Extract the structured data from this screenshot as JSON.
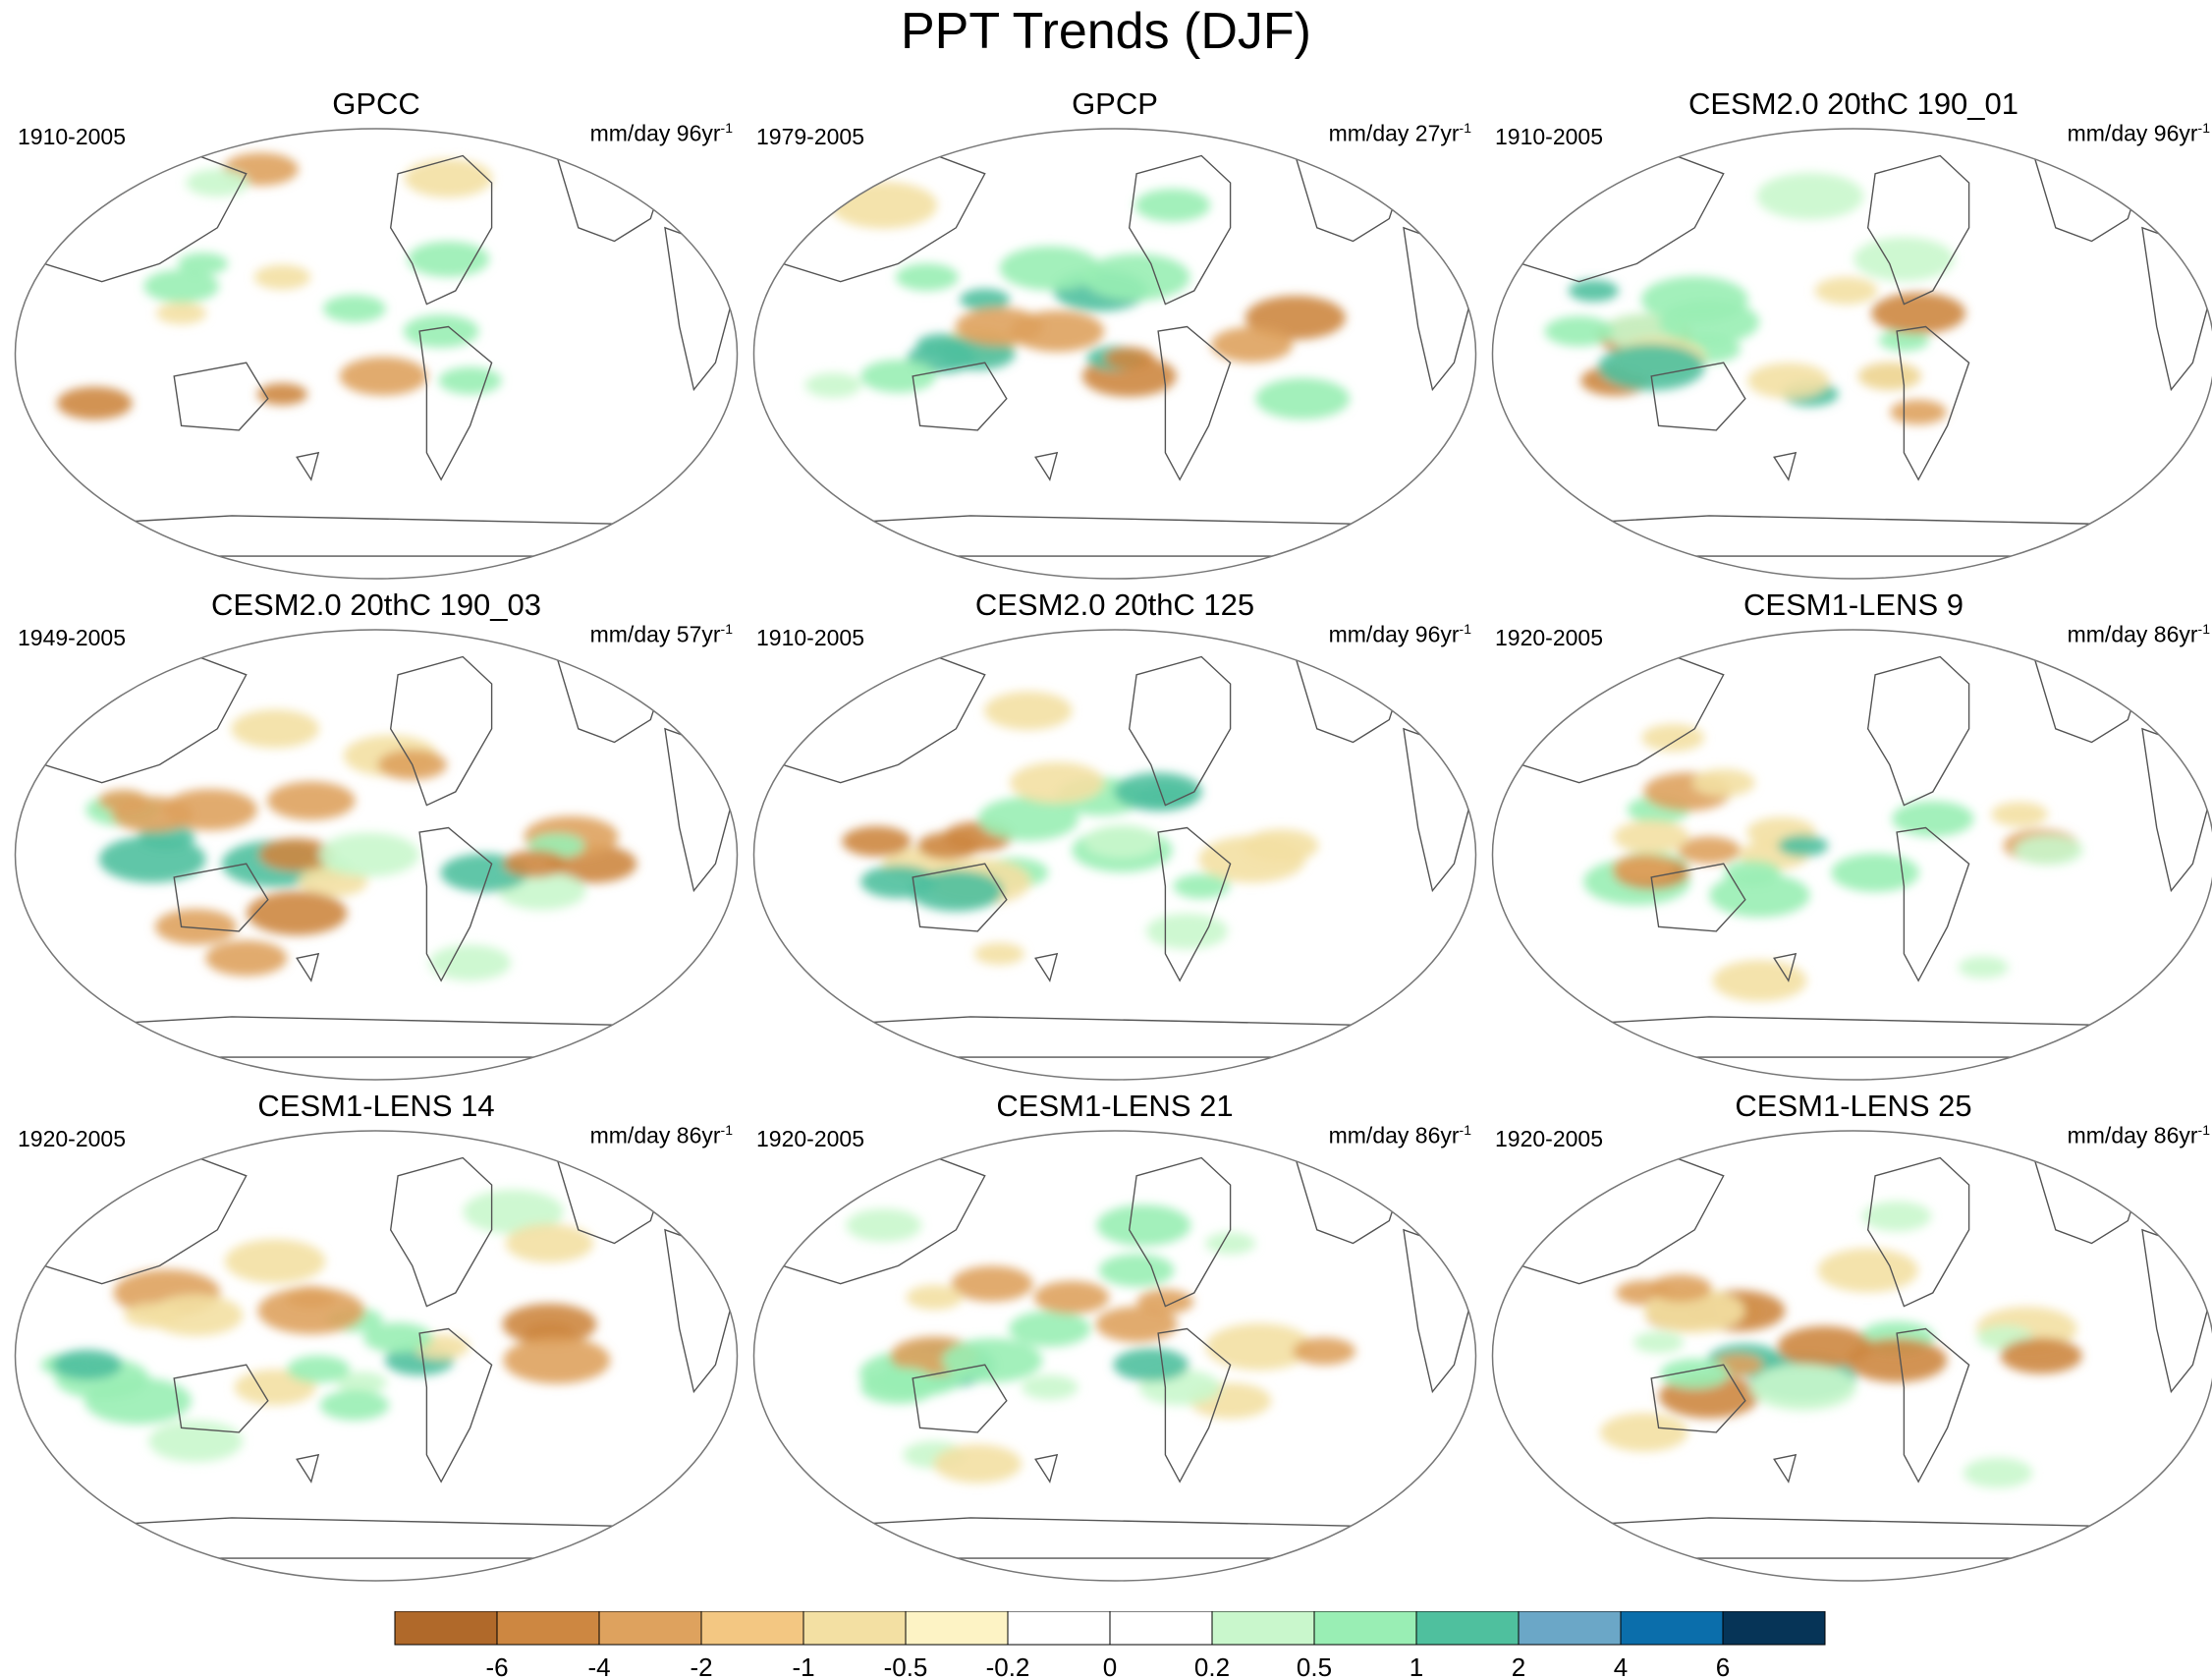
{
  "title": "PPT Trends (DJF)",
  "units_label": "mm/day",
  "colors": {
    "coast": "#555555",
    "outline": "#777777",
    "land_fill": "#ffffff"
  },
  "panels": [
    {
      "title": "GPCC",
      "period": "1910-2005",
      "trend_span": "96yr",
      "unit_exp": "-1",
      "pattern": [
        [
          0.08,
          0.07,
          12,
          2
        ],
        [
          0.12,
          0.11,
          8,
          -1
        ],
        [
          0.07,
          0.04,
          13,
          -1
        ],
        [
          0.07,
          0.03,
          14,
          2
        ],
        [
          0.34,
          0.09,
          12,
          -2
        ],
        [
          0.28,
          0.12,
          10,
          1
        ],
        [
          0.23,
          0.41,
          8,
          -1
        ],
        [
          0.26,
          0.3,
          8,
          2
        ],
        [
          0.37,
          0.33,
          9,
          -1
        ],
        [
          0.63,
          0.56,
          10,
          2
        ],
        [
          0.51,
          0.55,
          14,
          -2
        ],
        [
          0.59,
          0.45,
          12,
          2
        ],
        [
          0.37,
          0.59,
          8,
          -3
        ],
        [
          0.47,
          0.4,
          10,
          2
        ],
        [
          0.6,
          0.11,
          14,
          -1
        ],
        [
          0.6,
          0.29,
          13,
          2
        ],
        [
          0.11,
          0.61,
          12,
          -3
        ],
        [
          0.23,
          0.35,
          12,
          2
        ]
      ],
      "mask": "land"
    },
    {
      "title": "GPCP",
      "period": "1979-2005",
      "trend_span": "27yr",
      "unit_exp": "-1",
      "pattern": [
        [
          0.31,
          0.48,
          12,
          -1
        ],
        [
          0.42,
          0.45,
          15,
          -2
        ],
        [
          0.75,
          0.42,
          16,
          -3
        ],
        [
          0.26,
          0.51,
          11,
          3
        ],
        [
          0.31,
          0.5,
          12,
          3
        ],
        [
          0.76,
          0.6,
          15,
          2
        ],
        [
          0.69,
          0.48,
          13,
          -2
        ],
        [
          0.48,
          0.36,
          15,
          3
        ],
        [
          0.2,
          0.55,
          12,
          2
        ],
        [
          0.26,
          0.48,
          8,
          3
        ],
        [
          0.52,
          0.55,
          15,
          -3
        ],
        [
          0.53,
          0.33,
          17,
          2
        ],
        [
          0.5,
          0.51,
          9,
          3
        ],
        [
          0.32,
          0.38,
          8,
          3
        ],
        [
          0.24,
          0.33,
          10,
          2
        ],
        [
          0.52,
          0.51,
          8,
          -3
        ],
        [
          0.34,
          0.44,
          14,
          -2
        ],
        [
          0.11,
          0.57,
          9,
          1
        ],
        [
          0.58,
          0.17,
          12,
          2
        ],
        [
          0.41,
          0.31,
          16,
          2
        ],
        [
          0.18,
          0.17,
          17,
          -1
        ]
      ],
      "mask": "ocean"
    },
    {
      "title": "CESM2.0 20thC 190_01",
      "period": "1910-2005",
      "trend_span": "96yr",
      "unit_exp": "-1",
      "pattern": [
        [
          0.21,
          0.46,
          15,
          -3
        ],
        [
          0.28,
          0.38,
          17,
          2
        ],
        [
          0.57,
          0.47,
          8,
          2
        ],
        [
          0.3,
          0.49,
          10,
          2
        ],
        [
          0.55,
          0.55,
          10,
          -3
        ],
        [
          0.55,
          0.55,
          10,
          -1
        ],
        [
          0.44,
          0.59,
          9,
          3
        ],
        [
          0.59,
          0.41,
          15,
          -3
        ],
        [
          0.17,
          0.56,
          11,
          -3
        ],
        [
          0.59,
          0.63,
          9,
          -2
        ],
        [
          0.49,
          0.36,
          10,
          -1
        ],
        [
          0.21,
          0.45,
          13,
          1
        ],
        [
          0.23,
          0.51,
          15,
          -1
        ],
        [
          0.22,
          0.53,
          17,
          3
        ],
        [
          0.12,
          0.45,
          11,
          2
        ],
        [
          0.14,
          0.36,
          8,
          3
        ],
        [
          0.41,
          0.56,
          13,
          -1
        ],
        [
          0.3,
          0.43,
          16,
          2
        ],
        [
          0.57,
          0.29,
          16,
          1
        ],
        [
          0.44,
          0.15,
          17,
          1
        ]
      ],
      "mask": "ocean"
    },
    {
      "title": "CESM2.0 20thC 190_03",
      "period": "1949-2005",
      "trend_span": "57yr",
      "unit_exp": "-1",
      "pattern": [
        [
          0.27,
          0.4,
          15,
          -2
        ],
        [
          0.36,
          0.52,
          17,
          3
        ],
        [
          0.43,
          0.53,
          8,
          2
        ],
        [
          0.8,
          0.52,
          14,
          -3
        ],
        [
          0.77,
          0.46,
          15,
          -2
        ],
        [
          0.73,
          0.58,
          14,
          1
        ],
        [
          0.65,
          0.54,
          14,
          3
        ],
        [
          0.15,
          0.4,
          12,
          2
        ],
        [
          0.19,
          0.51,
          17,
          3
        ],
        [
          0.39,
          0.5,
          12,
          -3
        ],
        [
          0.44,
          0.56,
          11,
          -1
        ],
        [
          0.21,
          0.46,
          9,
          3
        ],
        [
          0.75,
          0.48,
          9,
          2
        ],
        [
          0.72,
          0.52,
          10,
          -3
        ],
        [
          0.19,
          0.41,
          13,
          -2
        ],
        [
          0.41,
          0.38,
          14,
          -2
        ],
        [
          0.52,
          0.28,
          15,
          -1
        ],
        [
          0.49,
          0.5,
          16,
          1
        ],
        [
          0.55,
          0.3,
          11,
          -2
        ],
        [
          0.63,
          0.74,
          13,
          1
        ],
        [
          0.25,
          0.66,
          13,
          -2
        ],
        [
          0.36,
          0.22,
          14,
          -1
        ],
        [
          0.32,
          0.73,
          13,
          -2
        ],
        [
          0.39,
          0.63,
          16,
          -3
        ],
        [
          0.15,
          0.38,
          8,
          -2
        ]
      ],
      "mask": "ocean"
    },
    {
      "title": "CESM2.0 20thC 125",
      "period": "1910-2005",
      "trend_span": "96yr",
      "unit_exp": "-1",
      "pattern": [
        [
          0.73,
          0.48,
          12,
          -1
        ],
        [
          0.48,
          0.37,
          14,
          2
        ],
        [
          0.69,
          0.51,
          17,
          -1
        ],
        [
          0.31,
          0.46,
          11,
          -3
        ],
        [
          0.38,
          0.42,
          16,
          2
        ],
        [
          0.56,
          0.36,
          14,
          3
        ],
        [
          0.36,
          0.54,
          11,
          2
        ],
        [
          0.57,
          0.37,
          9,
          3
        ],
        [
          0.51,
          0.49,
          16,
          2
        ],
        [
          0.31,
          0.56,
          17,
          -1
        ],
        [
          0.62,
          0.57,
          9,
          2
        ],
        [
          0.23,
          0.52,
          12,
          -1
        ],
        [
          0.28,
          0.58,
          15,
          3
        ],
        [
          0.27,
          0.48,
          10,
          -3
        ],
        [
          0.51,
          0.47,
          12,
          1
        ],
        [
          0.17,
          0.47,
          11,
          -3
        ],
        [
          0.2,
          0.56,
          12,
          3
        ],
        [
          0.42,
          0.34,
          15,
          -1
        ],
        [
          0.34,
          0.72,
          8,
          -1
        ],
        [
          0.6,
          0.67,
          13,
          1
        ],
        [
          0.38,
          0.18,
          14,
          -1
        ]
      ],
      "mask": "ocean"
    },
    {
      "title": "CESM1-LENS 9",
      "period": "1920-2005",
      "trend_span": "86yr",
      "unit_exp": "-1",
      "pattern": [
        [
          0.2,
          0.56,
          17,
          2
        ],
        [
          0.61,
          0.42,
          13,
          2
        ],
        [
          0.3,
          0.49,
          10,
          -2
        ],
        [
          0.23,
          0.4,
          10,
          2
        ],
        [
          0.22,
          0.53,
          12,
          2
        ],
        [
          0.39,
          0.5,
          11,
          -1
        ],
        [
          0.73,
          0.41,
          9,
          -1
        ],
        [
          0.4,
          0.45,
          11,
          -1
        ],
        [
          0.43,
          0.48,
          8,
          3
        ],
        [
          0.27,
          0.36,
          14,
          -2
        ],
        [
          0.22,
          0.54,
          12,
          -3
        ],
        [
          0.53,
          0.54,
          14,
          2
        ],
        [
          0.21,
          0.53,
          10,
          -2
        ],
        [
          0.76,
          0.48,
          12,
          -2
        ],
        [
          0.36,
          0.54,
          9,
          2
        ],
        [
          0.22,
          0.46,
          12,
          -1
        ],
        [
          0.32,
          0.34,
          10,
          -1
        ],
        [
          0.77,
          0.49,
          11,
          1
        ],
        [
          0.37,
          0.59,
          16,
          2
        ],
        [
          0.68,
          0.75,
          8,
          1
        ],
        [
          0.37,
          0.78,
          15,
          -1
        ],
        [
          0.25,
          0.24,
          10,
          -1
        ]
      ],
      "mask": "ocean"
    },
    {
      "title": "CESM1-LENS 14",
      "period": "1920-2005",
      "trend_span": "86yr",
      "unit_exp": "-1",
      "pattern": [
        [
          0.41,
          0.37,
          8,
          -2
        ],
        [
          0.07,
          0.52,
          8,
          2
        ],
        [
          0.47,
          0.42,
          9,
          2
        ],
        [
          0.21,
          0.36,
          17,
          -2
        ],
        [
          0.41,
          0.4,
          17,
          -2
        ],
        [
          0.48,
          0.56,
          8,
          1
        ],
        [
          0.19,
          0.41,
          9,
          -1
        ],
        [
          0.36,
          0.57,
          13,
          -1
        ],
        [
          0.74,
          0.45,
          8,
          -3
        ],
        [
          0.74,
          0.43,
          15,
          -3
        ],
        [
          0.42,
          0.53,
          10,
          2
        ],
        [
          0.25,
          0.41,
          15,
          -1
        ],
        [
          0.12,
          0.55,
          15,
          2
        ],
        [
          0.1,
          0.52,
          11,
          3
        ],
        [
          0.75,
          0.51,
          17,
          -2
        ],
        [
          0.56,
          0.51,
          11,
          3
        ],
        [
          0.47,
          0.61,
          11,
          2
        ],
        [
          0.59,
          0.48,
          9,
          -1
        ],
        [
          0.36,
          0.29,
          16,
          -1
        ],
        [
          0.53,
          0.46,
          11,
          2
        ],
        [
          0.25,
          0.69,
          15,
          1
        ],
        [
          0.69,
          0.18,
          16,
          1
        ],
        [
          0.17,
          0.6,
          17,
          2
        ],
        [
          0.74,
          0.25,
          14,
          -1
        ]
      ],
      "mask": "ocean"
    },
    {
      "title": "CESM1-LENS 21",
      "period": "1920-2005",
      "trend_span": "86yr",
      "unit_exp": "-1",
      "pattern": [
        [
          0.66,
          0.6,
          13,
          -1
        ],
        [
          0.26,
          0.52,
          17,
          3
        ],
        [
          0.22,
          0.54,
          17,
          2
        ],
        [
          0.41,
          0.44,
          13,
          2
        ],
        [
          0.33,
          0.34,
          13,
          -2
        ],
        [
          0.2,
          0.57,
          12,
          2
        ],
        [
          0.54,
          0.21,
          15,
          2
        ],
        [
          0.57,
          0.38,
          9,
          -2
        ],
        [
          0.25,
          0.5,
          14,
          -2
        ],
        [
          0.41,
          0.57,
          9,
          1
        ],
        [
          0.25,
          0.37,
          9,
          -1
        ],
        [
          0.53,
          0.43,
          13,
          -2
        ],
        [
          0.33,
          0.51,
          16,
          2
        ],
        [
          0.7,
          0.48,
          17,
          -1
        ],
        [
          0.79,
          0.49,
          10,
          -2
        ],
        [
          0.21,
          0.55,
          8,
          2
        ],
        [
          0.59,
          0.57,
          13,
          1
        ],
        [
          0.44,
          0.37,
          12,
          -2
        ],
        [
          0.66,
          0.25,
          8,
          1
        ],
        [
          0.53,
          0.31,
          12,
          2
        ],
        [
          0.25,
          0.72,
          10,
          1
        ],
        [
          0.18,
          0.21,
          12,
          1
        ],
        [
          0.31,
          0.74,
          14,
          -1
        ],
        [
          0.55,
          0.52,
          12,
          3
        ]
      ],
      "mask": "ocean"
    },
    {
      "title": "CESM1-LENS 25",
      "period": "1920-2005",
      "trend_span": "86yr",
      "unit_exp": "-1",
      "pattern": [
        [
          0.3,
          0.59,
          16,
          -3
        ],
        [
          0.43,
          0.55,
          17,
          3
        ],
        [
          0.33,
          0.4,
          10,
          -1
        ],
        [
          0.21,
          0.36,
          9,
          -2
        ],
        [
          0.56,
          0.46,
          12,
          2
        ],
        [
          0.56,
          0.51,
          16,
          -3
        ],
        [
          0.74,
          0.44,
          16,
          -1
        ],
        [
          0.35,
          0.51,
          12,
          3
        ],
        [
          0.46,
          0.48,
          15,
          -3
        ],
        [
          0.26,
          0.41,
          11,
          -3
        ],
        [
          0.34,
          0.4,
          15,
          -3
        ],
        [
          0.71,
          0.46,
          9,
          1
        ],
        [
          0.34,
          0.52,
          8,
          -2
        ],
        [
          0.43,
          0.57,
          17,
          1
        ],
        [
          0.76,
          0.5,
          13,
          -3
        ],
        [
          0.28,
          0.54,
          11,
          2
        ],
        [
          0.23,
          0.47,
          8,
          1
        ],
        [
          0.28,
          0.4,
          16,
          -1
        ],
        [
          0.26,
          0.35,
          10,
          -2
        ],
        [
          0.52,
          0.31,
          16,
          -1
        ],
        [
          0.7,
          0.76,
          11,
          1
        ],
        [
          0.21,
          0.67,
          14,
          -1
        ],
        [
          0.56,
          0.19,
          11,
          1
        ]
      ],
      "mask": "ocean"
    }
  ],
  "colorbar": {
    "colors": [
      "#b0692a",
      "#cd8741",
      "#dea25e",
      "#f3c782",
      "#f3e0a3",
      "#fdf3c5",
      "#ffffff",
      "#ffffff",
      "#c9f7cc",
      "#99eeb4",
      "#4fc09e",
      "#6ba7c7",
      "#0b6eab",
      "#063457"
    ],
    "ticks": [
      "-6",
      "-4",
      "-2",
      "-1",
      "-0.5",
      "-0.2",
      "0",
      "0.2",
      "0.5",
      "1",
      "2",
      "4",
      "6"
    ]
  }
}
